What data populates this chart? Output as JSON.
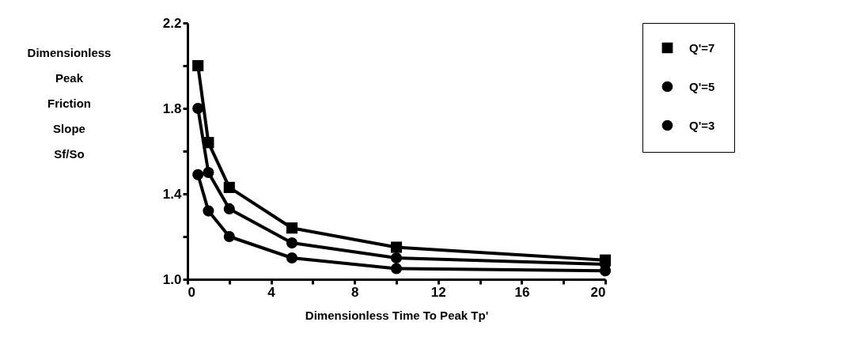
{
  "chart_data": {
    "type": "line",
    "xlabel": "Dimensionless Time To Peak Tp'",
    "ylabel": "Dimensionless Peak Friction Slope Sf/So",
    "x": [
      0.5,
      1,
      2,
      5,
      10,
      20
    ],
    "series": [
      {
        "name": "Q'=7",
        "color": "#000000",
        "marker": "square",
        "values": [
          2.0,
          1.64,
          1.43,
          1.24,
          1.15,
          1.09
        ]
      },
      {
        "name": "Q'=5",
        "color": "#000000",
        "marker": "circle",
        "values": [
          1.8,
          1.5,
          1.33,
          1.17,
          1.1,
          1.07
        ]
      },
      {
        "name": "Q'=3",
        "color": "#000000",
        "marker": "circle",
        "values": [
          1.49,
          1.32,
          1.2,
          1.1,
          1.05,
          1.04
        ]
      }
    ],
    "xlim": [
      0,
      20
    ],
    "ylim": [
      1.0,
      2.2
    ],
    "xticks": [
      {
        "value": 0,
        "label": "0"
      },
      {
        "value": 2,
        "label": null
      },
      {
        "value": 4,
        "label": "4"
      },
      {
        "value": 6,
        "label": null
      },
      {
        "value": 8,
        "label": "8"
      },
      {
        "value": 10,
        "label": null
      },
      {
        "value": 12,
        "label": "12"
      },
      {
        "value": 14,
        "label": null
      },
      {
        "value": 16,
        "label": "16"
      },
      {
        "value": 18,
        "label": null
      },
      {
        "value": 20,
        "label": "20"
      }
    ],
    "yticks": [
      {
        "value": 1.0,
        "label": "1.0"
      },
      {
        "value": 1.2,
        "label": null
      },
      {
        "value": 1.4,
        "label": "1.4"
      },
      {
        "value": 1.6,
        "label": null
      },
      {
        "value": 1.8,
        "label": "1.8"
      },
      {
        "value": 2.0,
        "label": null
      },
      {
        "value": 2.2,
        "label": "2.2"
      }
    ],
    "grid": false,
    "legend": "right",
    "line_style": "solid"
  }
}
